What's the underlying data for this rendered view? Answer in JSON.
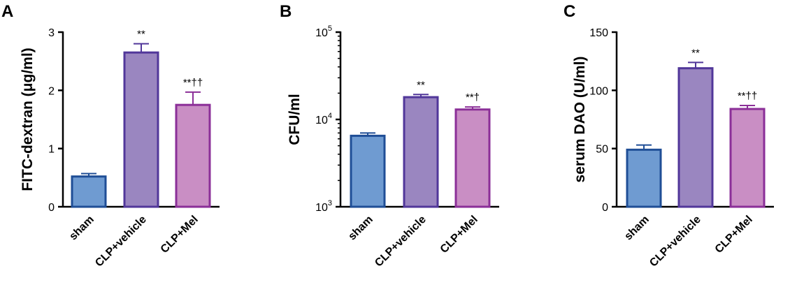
{
  "chart_data": [
    {
      "type": "bar",
      "panel": "A",
      "ylabel": "FITC-dextran (μg/ml)",
      "scale": "linear",
      "ylim": [
        0,
        3
      ],
      "yticks": [
        "0",
        "1",
        "2",
        "3"
      ],
      "categories": [
        "sham",
        "CLP+vehicle",
        "CLP+Mel"
      ],
      "values": [
        0.52,
        2.65,
        1.75
      ],
      "errors": [
        0.05,
        0.15,
        0.22
      ],
      "annotations": [
        "",
        "**",
        "**††"
      ]
    },
    {
      "type": "bar",
      "panel": "B",
      "ylabel": "CFU/ml",
      "scale": "log",
      "ylim": [
        1000,
        100000
      ],
      "yticks": [
        {
          "base": "10",
          "exp": "3"
        },
        {
          "base": "10",
          "exp": "4"
        },
        {
          "base": "10",
          "exp": "5"
        }
      ],
      "categories": [
        "sham",
        "CLP+vehicle",
        "CLP+Mel"
      ],
      "values": [
        6500,
        18000,
        13000
      ],
      "errors": [
        500,
        1300,
        900
      ],
      "annotations": [
        "",
        "**",
        "**†"
      ]
    },
    {
      "type": "bar",
      "panel": "C",
      "ylabel": "serum DAO (U/ml)",
      "scale": "linear",
      "ylim": [
        0,
        150
      ],
      "yticks": [
        "0",
        "50",
        "100",
        "150"
      ],
      "categories": [
        "sham",
        "CLP+vehicle",
        "CLP+Mel"
      ],
      "values": [
        49,
        119,
        84
      ],
      "errors": [
        4,
        5,
        3
      ],
      "annotations": [
        "",
        "**",
        "**††"
      ]
    }
  ],
  "style": {
    "bar_fills": [
      "#6f9bd1",
      "#9a86c0",
      "#c98ec4"
    ],
    "bar_strokes": [
      "#1f4e96",
      "#51379a",
      "#8b2f98"
    ],
    "error_colors": [
      "#1f4e96",
      "#51379a",
      "#8b2f98"
    ]
  }
}
